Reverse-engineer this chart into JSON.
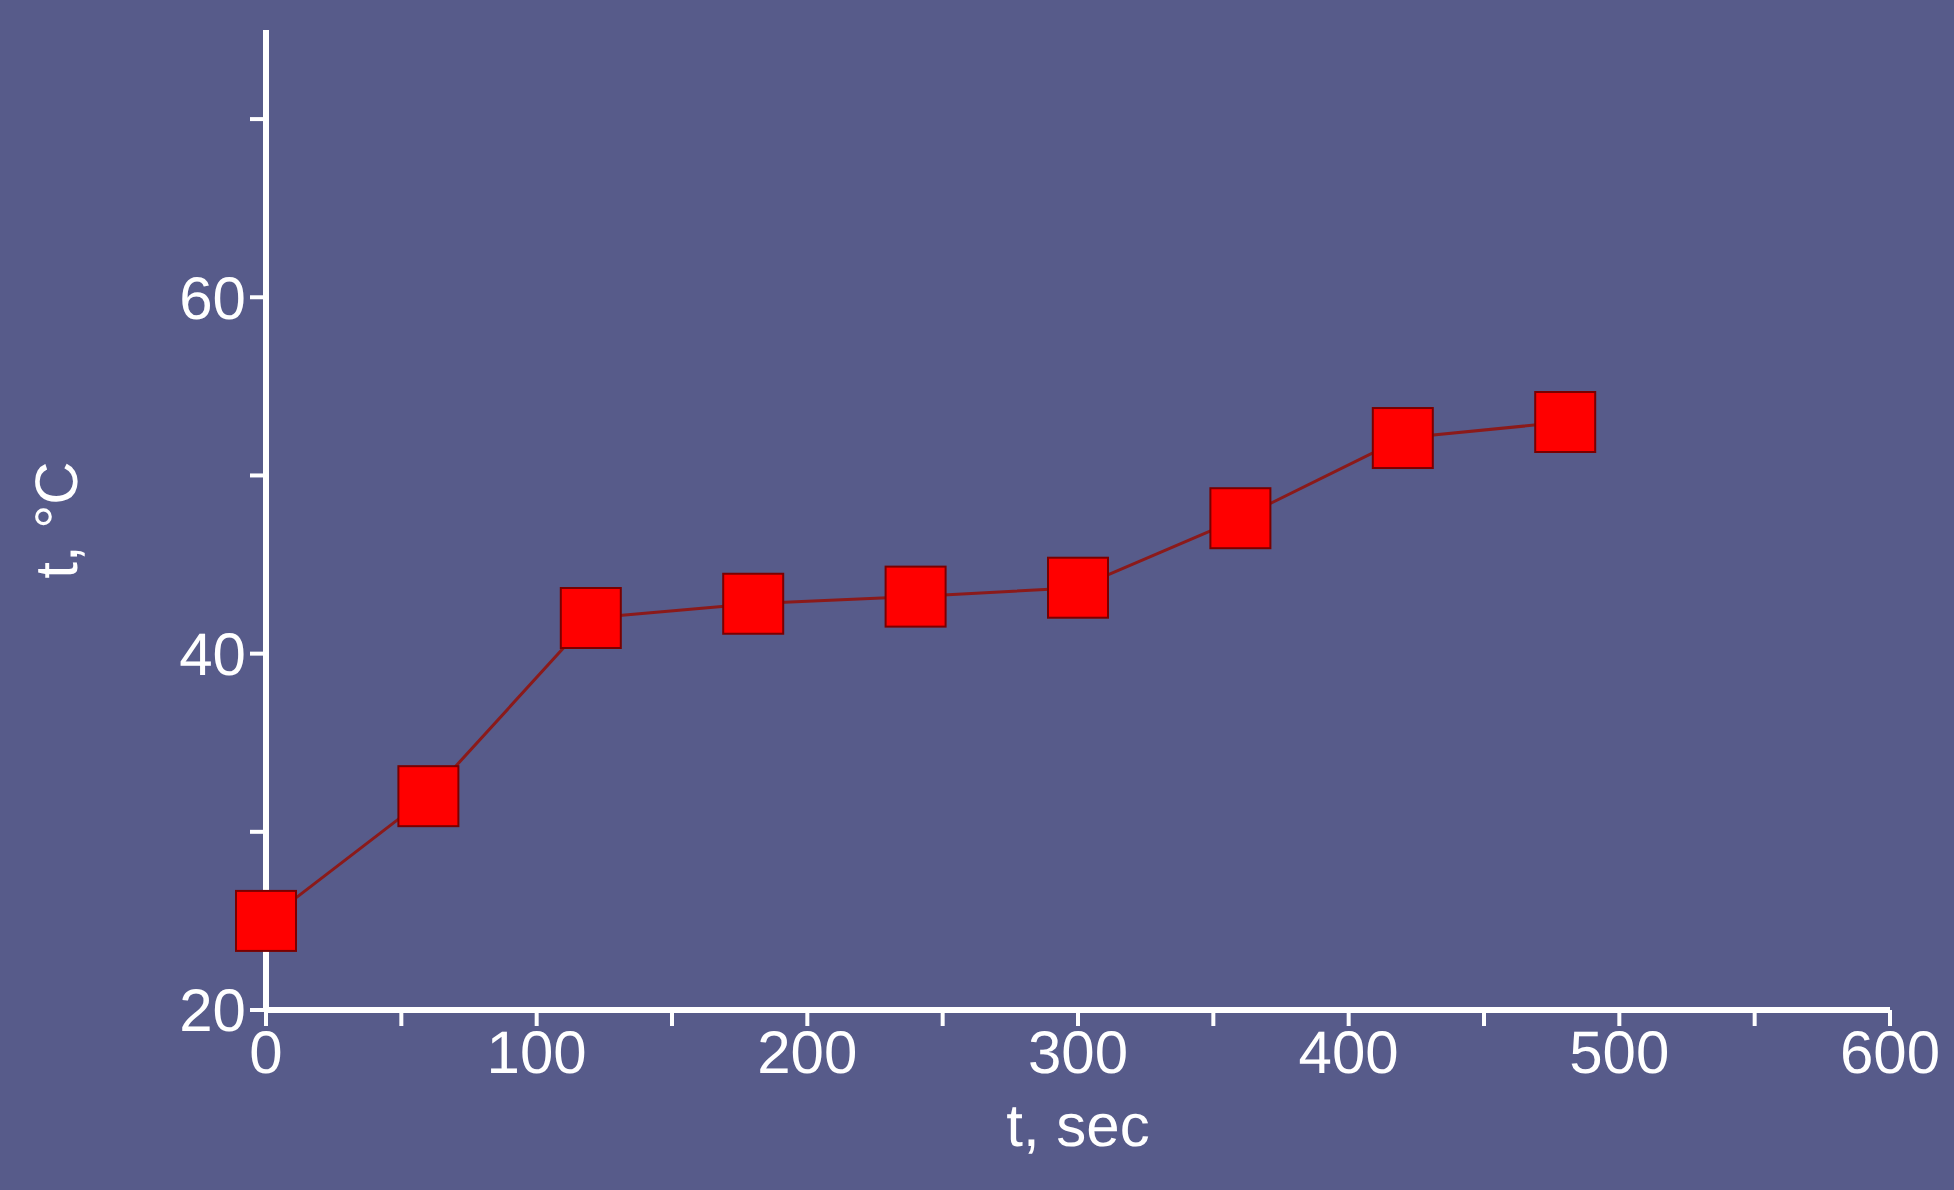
{
  "chart_data": {
    "type": "line",
    "xlabel": "t, sec",
    "ylabel": "t, °C",
    "x": [
      0,
      60,
      120,
      180,
      240,
      300,
      360,
      420,
      480
    ],
    "series": [
      {
        "color": "#8b1a1a",
        "values": [
          25,
          32,
          42,
          42.8,
          43.2,
          43.7,
          47.6,
          52.1,
          53
        ]
      }
    ],
    "marker": "square",
    "line_style": "solid",
    "grid": false,
    "legend": false,
    "xlim": [
      0,
      600
    ],
    "xticks": [
      0,
      {
        "value": 50,
        "label": null
      },
      100,
      {
        "value": 150,
        "label": null
      },
      200,
      {
        "value": 250,
        "label": null
      },
      300,
      {
        "value": 350,
        "label": null
      },
      400,
      {
        "value": 450,
        "label": null
      },
      500,
      {
        "value": 550,
        "label": null
      },
      600
    ],
    "ylim": [
      20,
      75
    ],
    "yticks": [
      20,
      {
        "value": 30,
        "label": null
      },
      40,
      {
        "value": 50,
        "label": null
      },
      60,
      {
        "value": 70,
        "label": null
      }
    ]
  }
}
